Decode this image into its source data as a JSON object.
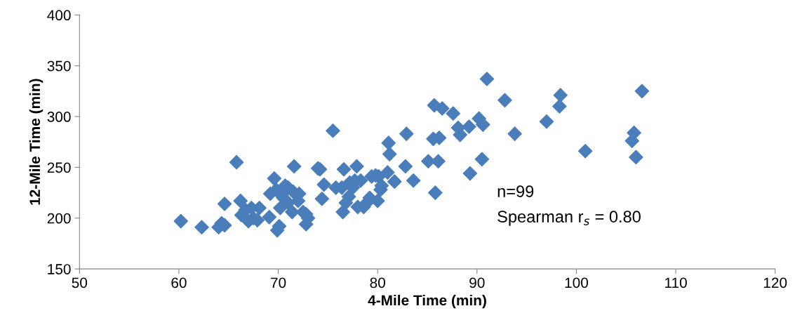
{
  "chart_data": {
    "type": "scatter",
    "xlabel": "4-Mile Time (min)",
    "ylabel": "12-Mile Time (min)",
    "xlim": [
      50,
      120
    ],
    "xticks": [
      50,
      60,
      70,
      80,
      90,
      100,
      110,
      120
    ],
    "ylim": [
      150,
      400
    ],
    "yticks": [
      150,
      200,
      250,
      300,
      350,
      400
    ],
    "grid": false,
    "marker": "diamond",
    "annotations": [
      "n=99",
      "Spearman r$_{s}$ = 0.80"
    ],
    "series": [
      {
        "color": "#4a7ebb",
        "x": [
          60.2,
          62.3,
          64,
          64.3,
          64.6,
          64.6,
          65.8,
          66.2,
          66.3,
          66.7,
          67,
          67.3,
          67.5,
          67.9,
          68.1,
          69.1,
          69.2,
          69.6,
          69.8,
          69.9,
          70.1,
          70.2,
          70.3,
          70.5,
          70.7,
          71,
          71,
          71.4,
          71.5,
          71.6,
          72,
          72.1,
          72.5,
          72.8,
          72.8,
          73,
          74,
          74.2,
          74.4,
          74.6,
          75.5,
          75.8,
          76.4,
          76.5,
          76.6,
          76.8,
          77.1,
          77.2,
          77.5,
          77.7,
          77.9,
          78,
          78.3,
          78.6,
          78.9,
          79.2,
          79.4,
          79.8,
          80,
          80.1,
          80.3,
          80.4,
          81,
          81.1,
          81.2,
          81.7,
          82.8,
          82.9,
          83.6,
          85.1,
          85.6,
          85.7,
          85.8,
          86.1,
          86.2,
          86.5,
          87.6,
          88.1,
          88.3,
          89.2,
          89.3,
          90.2,
          90.5,
          90.6,
          91,
          92.8,
          93.8,
          97,
          98.3,
          98.4,
          100.9,
          105.6,
          105.8,
          106,
          106.6
        ],
        "values": [
          197,
          191,
          191,
          195,
          193,
          214,
          255,
          217,
          203,
          208,
          197,
          210,
          200,
          198,
          210,
          201,
          224,
          239,
          228,
          188,
          192,
          210,
          223,
          220,
          232,
          215,
          230,
          206,
          226,
          251,
          217,
          224,
          206,
          194,
          204,
          200,
          249,
          248,
          219,
          233,
          286,
          230,
          230,
          206,
          248,
          215,
          221,
          235,
          230,
          237,
          251,
          211,
          237,
          211,
          215,
          220,
          241,
          242,
          217,
          241,
          228,
          232,
          245,
          274,
          263,
          236,
          251,
          283,
          237,
          256,
          278,
          311,
          225,
          256,
          279,
          308,
          303,
          289,
          282,
          290,
          244,
          298,
          258,
          292,
          337,
          316,
          283,
          295,
          310,
          321,
          266,
          276,
          284,
          260,
          325
        ]
      }
    ]
  }
}
